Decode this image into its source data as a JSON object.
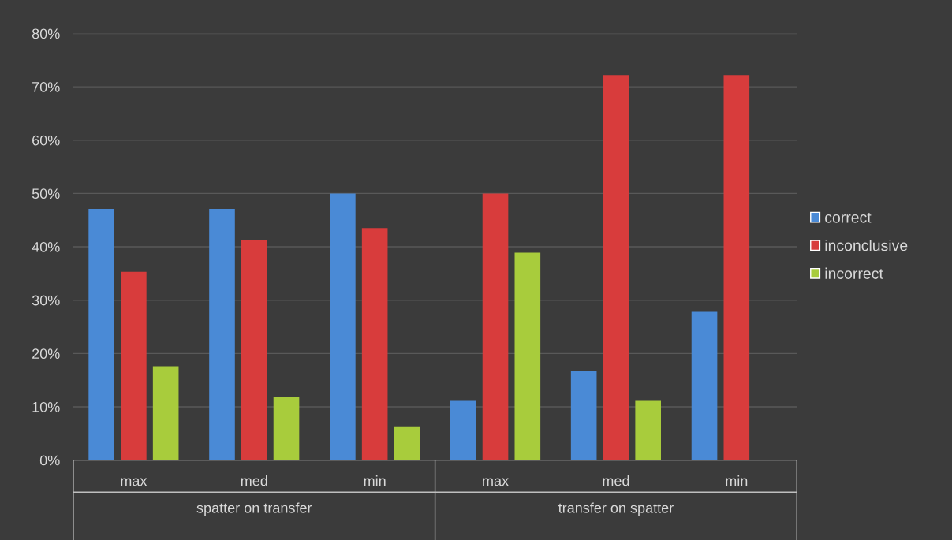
{
  "chart_data": {
    "type": "bar",
    "categories": [
      "max",
      "med",
      "min",
      "max",
      "med",
      "min"
    ],
    "annotations": [
      "spatter on transfer",
      "transfer on spatter"
    ],
    "series": [
      {
        "name": "correct",
        "color": "#4a8ad6",
        "values": [
          47.1,
          47.1,
          50,
          11.1,
          16.7,
          27.8
        ]
      },
      {
        "name": "inconclusive",
        "color": "#d83c3c",
        "values": [
          35.3,
          41.2,
          43.5,
          50,
          72.2,
          72.2
        ]
      },
      {
        "name": "incorrect",
        "color": "#a8cc3c",
        "values": [
          17.6,
          11.8,
          6.2,
          38.9,
          11.1,
          0
        ]
      }
    ],
    "ylim": [
      0,
      80
    ],
    "yticks": [
      {
        "value": 0,
        "label": "0%"
      },
      {
        "value": 10,
        "label": "10%"
      },
      {
        "value": 20,
        "label": "20%"
      },
      {
        "value": 30,
        "label": "30%"
      },
      {
        "value": 40,
        "label": "40%"
      },
      {
        "value": 50,
        "label": "50%"
      },
      {
        "value": 60,
        "label": "60%"
      },
      {
        "value": 70,
        "label": "70%"
      },
      {
        "value": 80,
        "label": "80%"
      }
    ],
    "grid": "y",
    "legend": "right"
  }
}
